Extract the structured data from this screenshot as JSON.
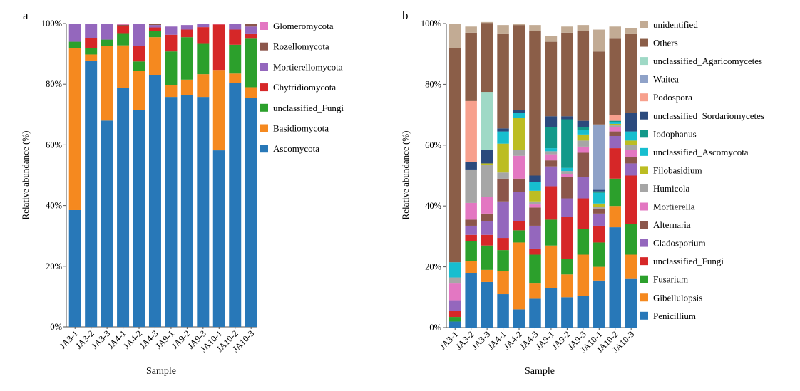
{
  "chart_data": [
    {
      "type": "bar",
      "stacked": true,
      "panel_label": "a",
      "xlabel": "Sample",
      "ylabel": "Relative abundance (%)",
      "ylim": [
        0,
        100
      ],
      "y_ticks": [
        "0%",
        "20%",
        "40%",
        "60%",
        "80%",
        "100%"
      ],
      "legend_position": "right",
      "categories": [
        "JA3-1",
        "JA3-2",
        "JA3-3",
        "JA4-1",
        "JA4-2",
        "JA4-3",
        "JA9-1",
        "JA9-2",
        "JA9-3",
        "JA10-1",
        "JA10-2",
        "JA10-3"
      ],
      "series": [
        {
          "name": "Ascomycota",
          "color": "#2878b8",
          "values": [
            38.5,
            87.8,
            68,
            78.8,
            71.5,
            83,
            75.8,
            76.5,
            75.8,
            58.2,
            80.5,
            75.5
          ]
        },
        {
          "name": "Basidiomycota",
          "color": "#f5891f",
          "values": [
            53.3,
            2,
            24.5,
            14,
            13,
            12.5,
            4,
            5,
            7.5,
            26.5,
            3,
            3.5
          ]
        },
        {
          "name": "unclassified_Fungi",
          "color": "#2ca02c",
          "values": [
            2.2,
            2,
            2.2,
            3.8,
            3,
            2,
            11,
            14,
            10,
            0,
            9.5,
            16
          ]
        },
        {
          "name": "Chytridiomycota",
          "color": "#d62728",
          "values": [
            0,
            3.3,
            0,
            2.5,
            5,
            1.2,
            5.5,
            2.5,
            5.5,
            15,
            5,
            1.5
          ]
        },
        {
          "name": "Mortierellomycota",
          "color": "#9467bd",
          "values": [
            6,
            4.9,
            5.3,
            0,
            7.5,
            0.8,
            2.7,
            1.5,
            1.2,
            0,
            2,
            2.5
          ]
        },
        {
          "name": "Rozellomycota",
          "color": "#8c564b",
          "values": [
            0,
            0,
            0,
            0.5,
            0,
            0.3,
            0,
            0,
            0,
            0,
            0,
            1
          ]
        },
        {
          "name": "Glomeromycota",
          "color": "#e377c2",
          "values": [
            0,
            0,
            0,
            0.4,
            0,
            0.2,
            0,
            0,
            0,
            0.3,
            0,
            0
          ]
        }
      ]
    },
    {
      "type": "bar",
      "stacked": true,
      "panel_label": "b",
      "xlabel": "Sample",
      "ylabel": "Relative abundance (%)",
      "ylim": [
        0,
        100
      ],
      "y_ticks": [
        "0%",
        "20%",
        "40%",
        "60%",
        "80%",
        "100%"
      ],
      "legend_position": "right",
      "categories": [
        "JA3-1",
        "JA3-2",
        "JA3-3",
        "JA4-1",
        "JA4-2",
        "JA4-3",
        "JA9-1",
        "JA9-2",
        "JA9-3",
        "JA10-1",
        "JA10-2",
        "JA10-3"
      ],
      "series": [
        {
          "name": "Penicillium",
          "color": "#2878b8",
          "values": [
            2,
            18,
            15,
            11,
            6,
            9.5,
            13,
            10,
            10.5,
            15.5,
            33,
            16
          ]
        },
        {
          "name": "Gibellulopsis",
          "color": "#f5891f",
          "values": [
            0,
            4,
            4,
            7.5,
            22,
            5,
            14,
            7.5,
            13.5,
            4.5,
            7,
            8
          ]
        },
        {
          "name": "Fusarium",
          "color": "#2ca02c",
          "values": [
            1.5,
            6.5,
            8,
            7,
            4,
            9.5,
            8.5,
            5,
            8.5,
            8,
            9,
            10
          ]
        },
        {
          "name": "unclassified_Fungi",
          "color": "#d62728",
          "values": [
            2,
            2,
            3.5,
            4,
            3,
            2,
            11,
            14,
            10,
            5.5,
            10,
            16
          ]
        },
        {
          "name": "Cladosporium",
          "color": "#9467bd",
          "values": [
            3.5,
            3,
            4.5,
            12,
            9.5,
            7.5,
            6.5,
            6,
            7,
            4,
            4,
            4
          ]
        },
        {
          "name": "Alternaria",
          "color": "#8c564b",
          "values": [
            0,
            2,
            2.5,
            7.5,
            4.5,
            6,
            2,
            7,
            8,
            1.5,
            1.5,
            2
          ]
        },
        {
          "name": "Mortierella",
          "color": "#e377c2",
          "values": [
            5.5,
            5.5,
            5.5,
            0,
            7.5,
            1,
            2,
            1,
            2,
            0,
            1.5,
            2.5
          ]
        },
        {
          "name": "Humicola",
          "color": "#a6a6a6",
          "values": [
            2,
            11,
            10.5,
            2,
            2,
            1,
            1,
            1,
            2,
            0.8,
            0.5,
            1.5
          ]
        },
        {
          "name": "Filobasidium",
          "color": "#bcbd22",
          "values": [
            0,
            0,
            0.5,
            9.5,
            10.5,
            3.5,
            0,
            0,
            2,
            1,
            0.5,
            1.5
          ]
        },
        {
          "name": "unclassified_Ascomycota",
          "color": "#17becf",
          "values": [
            5,
            0,
            0,
            4,
            1.5,
            3,
            1,
            1,
            1.5,
            3.5,
            0.5,
            3
          ]
        },
        {
          "name": "Iodophanus",
          "color": "#13998a",
          "values": [
            0,
            0,
            0,
            0,
            0,
            0,
            7,
            16,
            1,
            0.5,
            0.5,
            0
          ]
        },
        {
          "name": "unclassified_Sordariomycetes",
          "color": "#2b4a7d",
          "values": [
            0,
            2.5,
            4.5,
            1,
            1,
            2,
            3.5,
            1,
            2,
            0.5,
            0,
            6
          ]
        },
        {
          "name": "Podospora",
          "color": "#f7a08d",
          "values": [
            0,
            20,
            0,
            0,
            0,
            0,
            0,
            0,
            0,
            0,
            2,
            0
          ]
        },
        {
          "name": "Waitea",
          "color": "#8fa2c8",
          "values": [
            0,
            0,
            0,
            0,
            0,
            0,
            0,
            0,
            0,
            21.5,
            0,
            0
          ]
        },
        {
          "name": "unclassified_Agaricomycetes",
          "color": "#9fd9c6",
          "values": [
            0,
            0,
            19,
            0,
            0,
            0,
            0,
            0,
            0,
            0,
            0,
            0
          ]
        },
        {
          "name": "Others",
          "color": "#8b5e48",
          "values": [
            70.5,
            22.5,
            22.7,
            31,
            28,
            47.5,
            24.5,
            27.5,
            29.5,
            24,
            25,
            26
          ]
        },
        {
          "name": "unidentified",
          "color": "#c2ab94",
          "values": [
            8,
            2,
            0.3,
            3,
            0.5,
            2,
            2,
            2,
            2,
            7.2,
            4,
            2
          ]
        }
      ]
    }
  ]
}
